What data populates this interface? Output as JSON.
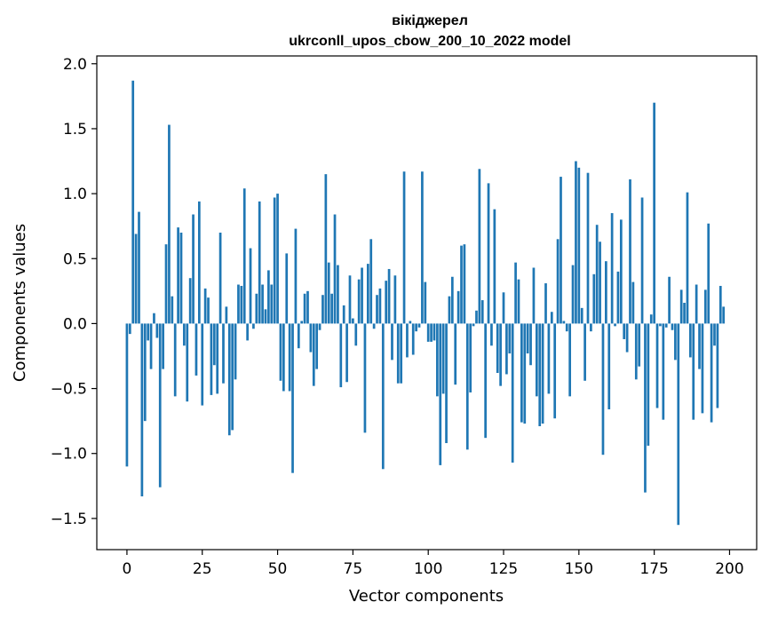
{
  "chart_data": {
    "type": "bar",
    "title_line1": "вікіджерел",
    "title_line2": "ukrconll_upos_cbow_200_10_2022 model",
    "xlabel": "Vector components",
    "ylabel": "Components values",
    "xlim": [
      -10,
      209
    ],
    "ylim": [
      -1.74,
      2.06
    ],
    "xticks": [
      0,
      25,
      50,
      75,
      100,
      125,
      150,
      175,
      200
    ],
    "yticks": [
      -1.5,
      -1.0,
      -0.5,
      0.0,
      0.5,
      1.0,
      1.5,
      2.0
    ],
    "ytick_labels": [
      "−1.5",
      "−1.0",
      "−0.5",
      "0.0",
      "0.5",
      "1.0",
      "1.5",
      "2.0"
    ],
    "grid": false,
    "bar_color": "#1f77b4",
    "values": [
      -1.1,
      -0.08,
      1.87,
      0.69,
      0.86,
      -1.33,
      -0.75,
      -0.13,
      -0.35,
      0.08,
      -0.11,
      -1.26,
      -0.35,
      0.61,
      1.53,
      0.21,
      -0.56,
      0.74,
      0.7,
      -0.17,
      -0.6,
      0.35,
      0.84,
      -0.4,
      0.94,
      -0.63,
      0.27,
      0.2,
      -0.55,
      -0.32,
      -0.54,
      0.7,
      -0.46,
      0.13,
      -0.86,
      -0.82,
      -0.43,
      0.3,
      0.29,
      1.04,
      -0.13,
      0.58,
      -0.04,
      0.23,
      0.94,
      0.3,
      0.11,
      0.41,
      0.3,
      0.97,
      1.0,
      -0.44,
      -0.52,
      0.54,
      -0.52,
      -1.15,
      0.73,
      -0.19,
      0.02,
      0.23,
      0.25,
      -0.22,
      -0.48,
      -0.35,
      -0.05,
      0.22,
      1.15,
      0.47,
      0.23,
      0.84,
      0.45,
      -0.49,
      0.14,
      -0.45,
      0.37,
      0.04,
      -0.17,
      0.34,
      0.43,
      -0.84,
      0.46,
      0.65,
      -0.04,
      0.22,
      0.27,
      -1.12,
      0.33,
      0.42,
      -0.28,
      0.37,
      -0.46,
      -0.46,
      1.17,
      -0.26,
      0.02,
      -0.24,
      -0.06,
      -0.03,
      1.17,
      0.32,
      -0.14,
      -0.14,
      -0.13,
      -0.56,
      -1.09,
      -0.54,
      -0.92,
      0.21,
      0.36,
      -0.47,
      0.25,
      0.6,
      0.61,
      -0.97,
      -0.53,
      -0.02,
      0.1,
      1.19,
      0.18,
      -0.88,
      1.08,
      -0.17,
      0.88,
      -0.38,
      -0.48,
      0.24,
      -0.39,
      -0.23,
      -1.07,
      0.47,
      0.34,
      -0.76,
      -0.77,
      -0.23,
      -0.32,
      0.43,
      -0.56,
      -0.79,
      -0.77,
      0.31,
      -0.54,
      0.09,
      -0.73,
      0.65,
      1.13,
      0.02,
      -0.06,
      -0.56,
      0.45,
      1.25,
      1.2,
      0.12,
      -0.44,
      1.16,
      -0.06,
      0.38,
      0.76,
      0.63,
      -1.01,
      0.48,
      -0.66,
      0.85,
      -0.02,
      0.4,
      0.8,
      -0.12,
      -0.22,
      1.11,
      0.32,
      -0.43,
      -0.33,
      0.97,
      -1.3,
      -0.94,
      0.07,
      1.7,
      -0.65,
      -0.02,
      -0.74,
      -0.03,
      0.36,
      -0.05,
      -0.28,
      -1.55,
      0.26,
      0.16,
      1.01,
      -0.26,
      -0.74,
      0.3,
      -0.35,
      -0.69,
      0.26,
      0.77,
      -0.76,
      -0.17,
      -0.65,
      0.29,
      0.13
    ]
  }
}
